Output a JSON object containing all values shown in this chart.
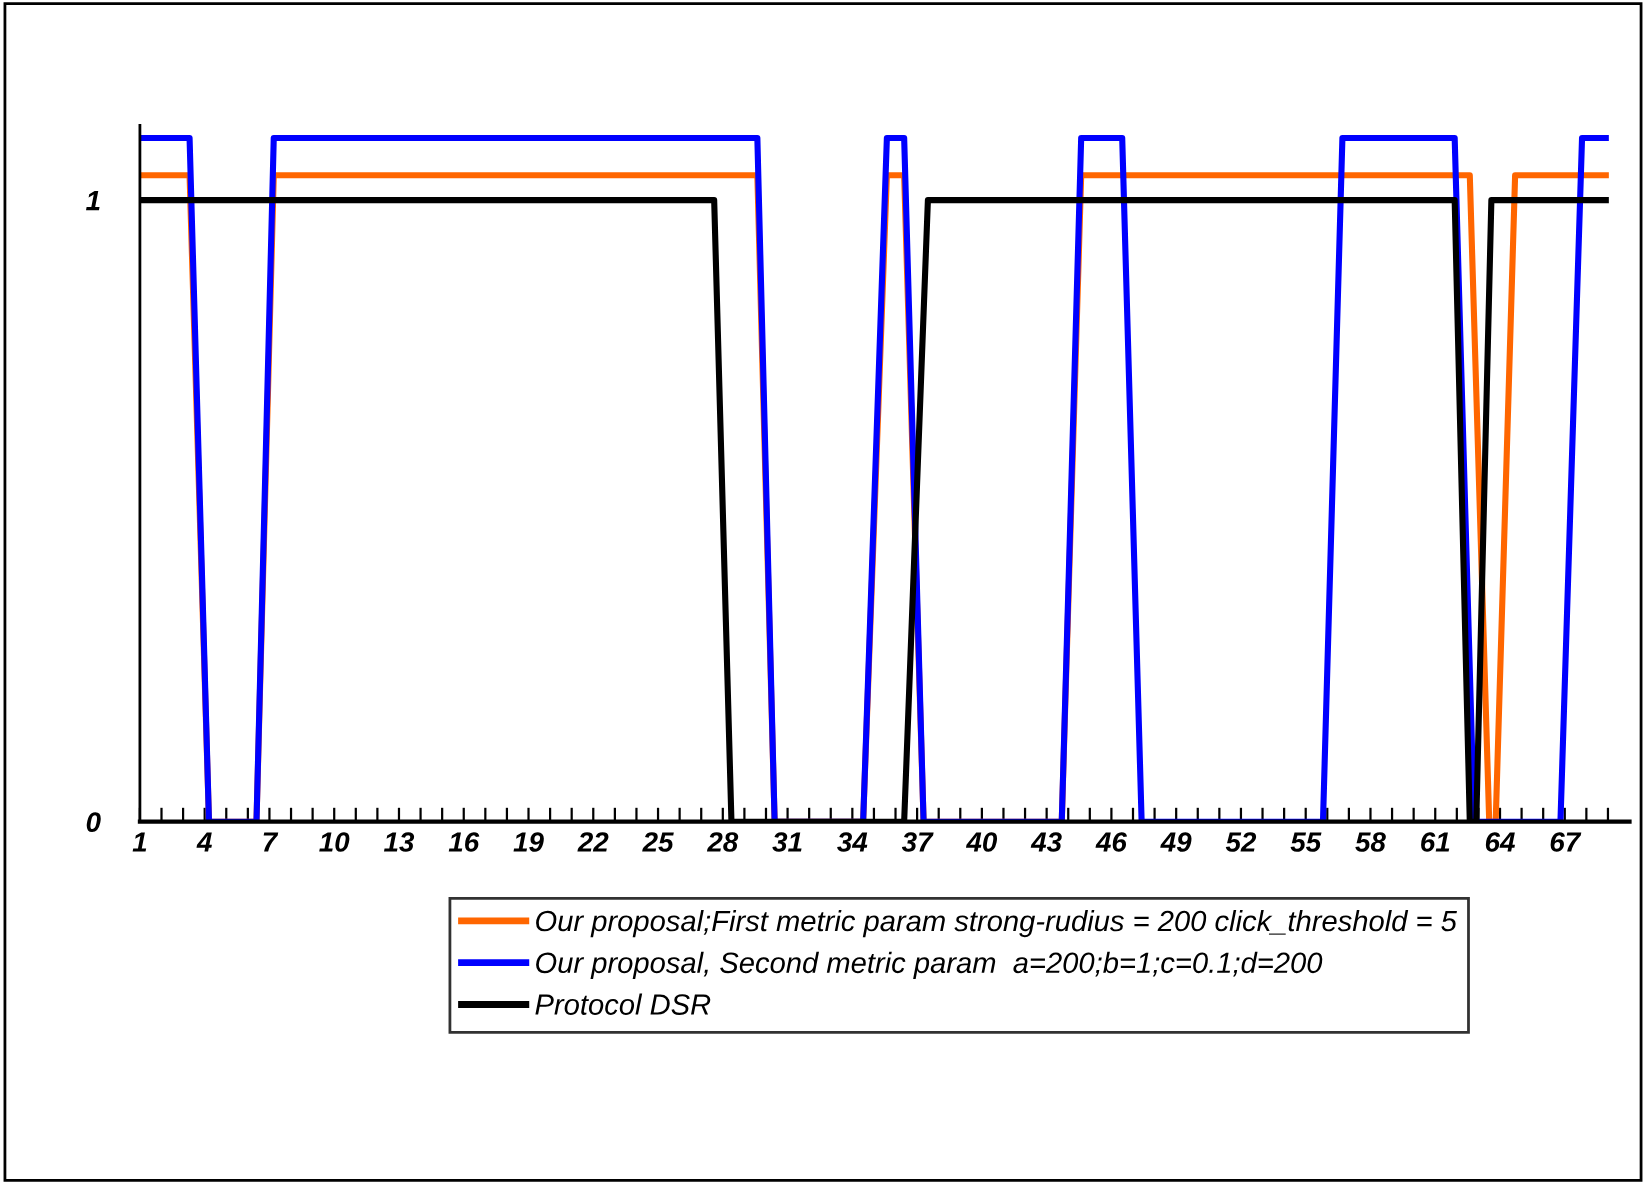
{
  "chart_data": {
    "type": "line",
    "series": [
      {
        "name": "Our proposal;First metric param strong-rudius = 200 click_threshold = 5",
        "color": "#ff6600",
        "x": [
          1,
          3.3,
          4.2,
          6.4,
          7.2,
          29.6,
          30.4,
          34.5,
          35.6,
          36.4,
          37.3,
          43.7,
          44.6,
          62.6,
          63.5,
          63.8,
          64.7,
          68.9
        ],
        "values": [
          1.04,
          1.04,
          0,
          0,
          1.04,
          1.04,
          0,
          0,
          1.04,
          1.04,
          0,
          0,
          1.04,
          1.04,
          0,
          0,
          1.04,
          1.04
        ]
      },
      {
        "name": "Our proposal, Second metric param  a=200;b=1;c=0.1;d=200",
        "color": "#0000ff",
        "x": [
          1,
          3.3,
          4.2,
          6.4,
          7.2,
          29.6,
          30.4,
          34.5,
          35.6,
          36.4,
          37.3,
          43.7,
          44.6,
          46.5,
          47.4,
          55.8,
          56.7,
          61.9,
          62.8,
          66.8,
          67.8,
          68.9
        ],
        "values": [
          1.1,
          1.1,
          0,
          0,
          1.1,
          1.1,
          0,
          0,
          1.1,
          1.1,
          0,
          0,
          1.1,
          1.1,
          0,
          0,
          1.1,
          1.1,
          0,
          0,
          1.1,
          1.1
        ]
      },
      {
        "name": "Protocol DSR",
        "color": "#000000",
        "x": [
          1,
          27.6,
          28.4,
          36.4,
          37.5,
          61.9,
          62.6,
          62.9,
          63.6,
          68.9
        ],
        "values": [
          1,
          1,
          0,
          0,
          1,
          1,
          0,
          0,
          1,
          1
        ]
      }
    ],
    "xlim": [
      1,
      70
    ],
    "ylim": [
      0,
      1.12
    ],
    "xticks": [
      1,
      {
        "value": 2,
        "label": null
      },
      {
        "value": 3,
        "label": null
      },
      4,
      {
        "value": 5,
        "label": null
      },
      {
        "value": 6,
        "label": null
      },
      7,
      {
        "value": 8,
        "label": null
      },
      {
        "value": 9,
        "label": null
      },
      10,
      {
        "value": 11,
        "label": null
      },
      {
        "value": 12,
        "label": null
      },
      13,
      {
        "value": 14,
        "label": null
      },
      {
        "value": 15,
        "label": null
      },
      16,
      {
        "value": 17,
        "label": null
      },
      {
        "value": 18,
        "label": null
      },
      19,
      {
        "value": 20,
        "label": null
      },
      {
        "value": 21,
        "label": null
      },
      22,
      {
        "value": 23,
        "label": null
      },
      {
        "value": 24,
        "label": null
      },
      25,
      {
        "value": 26,
        "label": null
      },
      {
        "value": 27,
        "label": null
      },
      28,
      {
        "value": 29,
        "label": null
      },
      {
        "value": 30,
        "label": null
      },
      31,
      {
        "value": 32,
        "label": null
      },
      {
        "value": 33,
        "label": null
      },
      34,
      {
        "value": 35,
        "label": null
      },
      {
        "value": 36,
        "label": null
      },
      37,
      {
        "value": 38,
        "label": null
      },
      {
        "value": 39,
        "label": null
      },
      40,
      {
        "value": 41,
        "label": null
      },
      {
        "value": 42,
        "label": null
      },
      43,
      {
        "value": 44,
        "label": null
      },
      {
        "value": 45,
        "label": null
      },
      46,
      {
        "value": 47,
        "label": null
      },
      {
        "value": 48,
        "label": null
      },
      49,
      {
        "value": 50,
        "label": null
      },
      {
        "value": 51,
        "label": null
      },
      52,
      {
        "value": 53,
        "label": null
      },
      {
        "value": 54,
        "label": null
      },
      55,
      {
        "value": 56,
        "label": null
      },
      {
        "value": 57,
        "label": null
      },
      58,
      {
        "value": 59,
        "label": null
      },
      {
        "value": 60,
        "label": null
      },
      61,
      {
        "value": 62,
        "label": null
      },
      {
        "value": 63,
        "label": null
      },
      64,
      {
        "value": 65,
        "label": null
      },
      {
        "value": 66,
        "label": null
      },
      67,
      {
        "value": 68,
        "label": null
      },
      {
        "value": 69,
        "label": null
      }
    ],
    "yticks": [
      0,
      1
    ],
    "grid": false,
    "legend": "bottom",
    "marker": "none",
    "line_style": "solid"
  }
}
